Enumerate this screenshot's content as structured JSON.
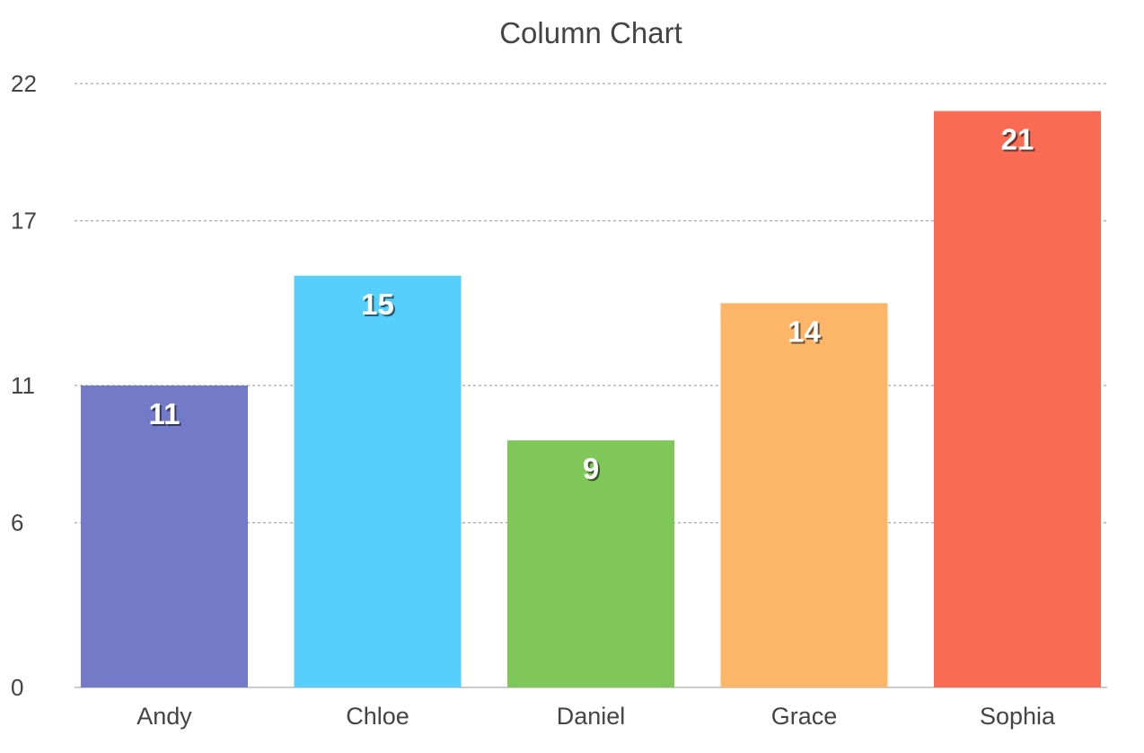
{
  "chart_data": {
    "type": "bar",
    "title": "Column Chart",
    "xlabel": "",
    "ylabel": "",
    "categories": [
      "Andy",
      "Chloe",
      "Daniel",
      "Grace",
      "Sophia"
    ],
    "values": [
      11,
      15,
      9,
      14,
      21
    ],
    "colors": [
      "#737bc8",
      "#56cffc",
      "#7fc759",
      "#fdb567",
      "#f96b52"
    ],
    "ylim": [
      0,
      22
    ],
    "yticks": [
      "0",
      "6",
      "11",
      "17",
      "22"
    ],
    "grid": true,
    "grid_style": "dashed-horizontal",
    "legend": "none",
    "data_labels": true
  }
}
